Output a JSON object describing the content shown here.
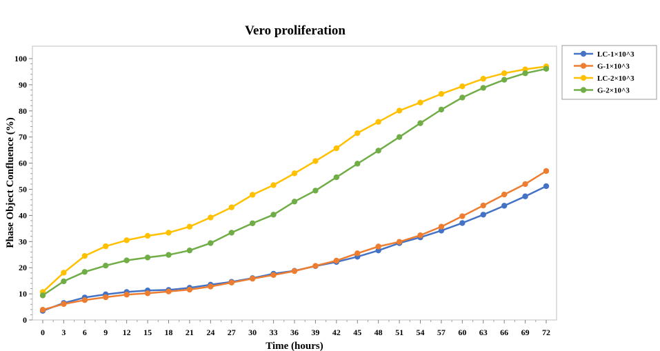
{
  "chart_data": {
    "type": "line",
    "title": "Vero proliferation",
    "xlabel": "Time (hours)",
    "ylabel": "Phase Object Confluence (%)",
    "x": [
      0,
      3,
      6,
      9,
      12,
      15,
      18,
      21,
      24,
      27,
      30,
      33,
      36,
      39,
      42,
      45,
      48,
      51,
      54,
      57,
      60,
      63,
      66,
      69,
      72
    ],
    "xlim": [
      0,
      72
    ],
    "ylim": [
      0,
      100
    ],
    "yticks": [
      0,
      10,
      20,
      30,
      40,
      50,
      60,
      70,
      80,
      90,
      100
    ],
    "grid": false,
    "legend_position": "right",
    "series": [
      {
        "name": "LC-1×10^3",
        "color": "#4472C4",
        "values": [
          3.5,
          6.5,
          8.6,
          9.8,
          10.7,
          11.3,
          11.5,
          12.3,
          13.5,
          14.6,
          16.0,
          17.7,
          18.8,
          20.6,
          22.2,
          24.2,
          26.6,
          29.4,
          31.6,
          34.2,
          37.1,
          40.3,
          43.7,
          47.3,
          51.2
        ]
      },
      {
        "name": "G-1×10^3",
        "color": "#ED7D31",
        "values": [
          3.9,
          6.1,
          7.6,
          8.7,
          9.7,
          10.2,
          10.9,
          11.6,
          12.8,
          14.3,
          15.8,
          17.2,
          18.7,
          20.7,
          22.7,
          25.5,
          28.1,
          29.9,
          32.4,
          35.7,
          39.7,
          43.8,
          48.0,
          52.0,
          57.0
        ]
      },
      {
        "name": "LC-2×10^3",
        "color": "#FFC000",
        "values": [
          10.7,
          18.1,
          24.5,
          28.2,
          30.5,
          32.2,
          33.4,
          35.7,
          39.2,
          43.1,
          47.9,
          51.6,
          56.1,
          60.8,
          65.7,
          71.5,
          75.8,
          80.1,
          83.2,
          86.5,
          89.4,
          92.3,
          94.4,
          95.9,
          97.0
        ]
      },
      {
        "name": "G-2×10^3",
        "color": "#70AD47",
        "values": [
          9.4,
          14.8,
          18.4,
          20.8,
          22.8,
          23.9,
          24.9,
          26.6,
          29.4,
          33.4,
          37.0,
          40.3,
          45.3,
          49.5,
          54.6,
          59.8,
          64.8,
          70.0,
          75.3,
          80.5,
          85.1,
          88.8,
          91.9,
          94.4,
          96.1
        ]
      }
    ]
  }
}
